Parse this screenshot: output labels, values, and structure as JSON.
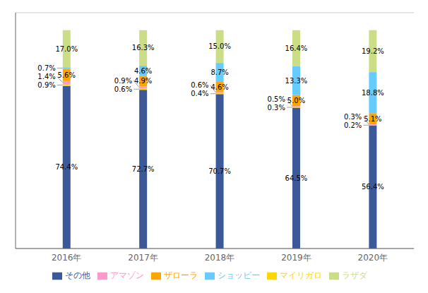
{
  "chart_data": {
    "type": "bar",
    "stacked": true,
    "categories": [
      "2016年",
      "2017年",
      "2018年",
      "2019年",
      "2020年"
    ],
    "series": [
      {
        "name": "その他",
        "color": "#3B5998",
        "values": [
          74.4,
          72.7,
          70.7,
          64.5,
          56.4
        ],
        "value_labels": [
          "74.4%",
          "72.7%",
          "70.7%",
          "64.5%",
          "56.4%"
        ]
      },
      {
        "name": "マイリガロ",
        "color": "#FFD700",
        "values": [
          0.9,
          0.6,
          0.4,
          0.3,
          0.2
        ],
        "value_labels": [
          "0.9%",
          "0.6%",
          "0.4%",
          "0.3%",
          "0.2%"
        ]
      },
      {
        "name": "アマゾン",
        "color": "#FF99CC",
        "values": [
          1.4,
          0.9,
          0.6,
          0.5,
          0.3
        ],
        "value_labels": [
          "1.4%",
          "0.9%",
          "0.6%",
          "0.5%",
          "0.3%"
        ]
      },
      {
        "name": "ザローラ",
        "color": "#FFA500",
        "values": [
          5.6,
          4.9,
          4.6,
          5.0,
          5.1
        ],
        "value_labels": [
          "5.6%",
          "4.9%",
          "4.6%",
          "5.0%",
          "5.1%"
        ]
      },
      {
        "name": "ショッピー",
        "color": "#66CCFF",
        "values": [
          0.7,
          4.6,
          8.7,
          13.3,
          18.8
        ],
        "value_labels": [
          "0.7%",
          "4.6%",
          "8.7%",
          "13.3%",
          "18.8%"
        ]
      },
      {
        "name": "ラザダ",
        "color": "#CCDD88",
        "values": [
          17.0,
          16.3,
          15.0,
          16.4,
          19.2
        ],
        "value_labels": [
          "17.0%",
          "16.3%",
          "15.0%",
          "16.4%",
          "19.2%"
        ]
      }
    ],
    "ylim": [
      0,
      108
    ],
    "yticks": [
      0,
      20,
      40,
      60,
      80,
      100
    ],
    "grid": true,
    "data_labels": true,
    "tick_labels": "x",
    "legend": "bottom"
  }
}
